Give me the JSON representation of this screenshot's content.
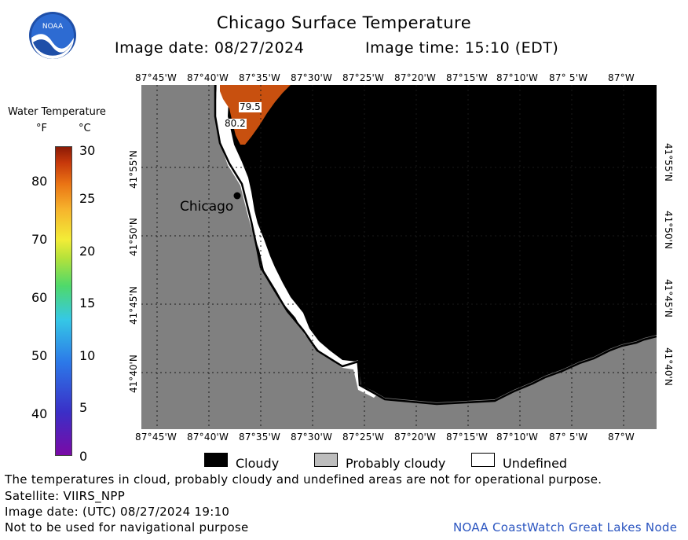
{
  "header": {
    "title": "Chicago Surface Temperature",
    "image_date": "Image date: 08/27/2024",
    "image_time": "Image time: 15:10 (EDT)"
  },
  "logo": {
    "text": "NOAA",
    "icon": "noaa-logo-icon"
  },
  "axes": {
    "lon_top": [
      "87°45'W",
      "87°40'W",
      "87°35'W",
      "87°30'W",
      "87°25'W",
      "87°20'W",
      "87°15'W",
      "87°10'W",
      "87° 5'W",
      "87°W"
    ],
    "lon_bottom": [
      "87°45'W",
      "87°40'W",
      "87°35'W",
      "87°30'W",
      "87°25'W",
      "87°20'W",
      "87°15'W",
      "87°10'W",
      "87° 5'W",
      "87°W"
    ],
    "lat_left": [
      "41°55'N",
      "41°50'N",
      "41°45'N",
      "41°40'N"
    ],
    "lat_right": [
      "41°55'N",
      "41°50'N",
      "41°45'N",
      "41°40'N"
    ]
  },
  "legend": {
    "title": "Water Temperature",
    "unit_f": "°F",
    "unit_c": "°C",
    "ticks_f": [
      "80",
      "70",
      "60",
      "50",
      "40"
    ],
    "ticks_c": [
      "30",
      "25",
      "20",
      "15",
      "10",
      "5",
      "0"
    ]
  },
  "map": {
    "city": "Chicago",
    "sst_labels": [
      "79.5",
      "80.2"
    ],
    "colors": {
      "land": "#808080",
      "cloudy": "#000000",
      "probably_cloudy": "#bdbdbd",
      "undefined": "#ffffff",
      "sst_warm": "#c8500f"
    }
  },
  "key": {
    "cloudy": "Cloudy",
    "probably_cloudy": "Probably cloudy",
    "undefined": "Undefined"
  },
  "footer": {
    "disclaimer": "The temperatures in cloud, probably cloudy and undefined areas are not for operational purpose.",
    "satellite": "Satellite: VIIRS_NPP",
    "utc_date": "Image date: (UTC) 08/27/2024  19:10",
    "nav_warning": "Not to be used for navigational purpose",
    "credit": "NOAA CoastWatch Great Lakes Node"
  }
}
